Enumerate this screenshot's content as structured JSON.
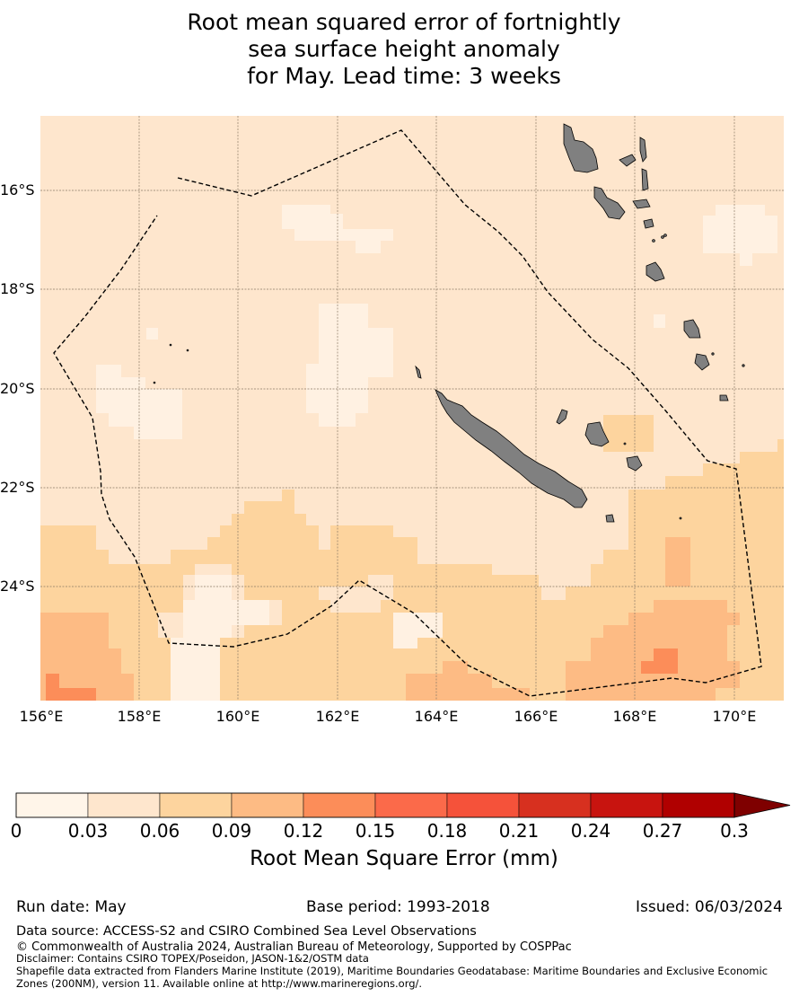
{
  "title": {
    "line1": "Root mean squared error of fortnightly",
    "line2": "sea surface height anomaly",
    "line3": "for May. Lead time: 3 weeks"
  },
  "map": {
    "lon_labels": [
      "156°E",
      "158°E",
      "160°E",
      "162°E",
      "164°E",
      "166°E",
      "168°E",
      "170°E"
    ],
    "lat_labels": [
      "16°S",
      "18°S",
      "20°S",
      "22°S",
      "24°S"
    ],
    "lon_ticks": [
      156,
      158,
      160,
      162,
      164,
      166,
      168,
      170
    ],
    "lat_ticks": [
      -16,
      -18,
      -20,
      -22,
      -24
    ],
    "extent": {
      "lon_min": 156,
      "lon_max": 171,
      "lat_min": -26.5,
      "lat_max": -14.6
    },
    "land_color": "#808080",
    "grid_color": "#8a7a66"
  },
  "colorbar": {
    "ticks": [
      "0",
      "0.03",
      "0.06",
      "0.09",
      "0.12",
      "0.15",
      "0.18",
      "0.21",
      "0.24",
      "0.27",
      "0.3"
    ],
    "colors": [
      "#fff5e9",
      "#fee6cd",
      "#fdd49e",
      "#fdbb84",
      "#fc8d59",
      "#fb6a4a",
      "#f5523a",
      "#d7301f",
      "#c8140f",
      "#b00000"
    ],
    "extend_color": "#7f0000",
    "label": "Root Mean Square Error (mm)"
  },
  "footer": {
    "run_date": "Run date: May",
    "base_period": "Base period: 1993-2018",
    "issued": "Issued: 06/03/2024",
    "data_source": "Data source: ACCESS-S2 and CSIRO Combined Sea Level Observations",
    "copyright": "© Commonwealth of Australia 2024, Australian Bureau of Meteorology, Supported by COSPPac",
    "disclaimer": "Disclaimer: Contains CSIRO TOPEX/Poseidon, JASON-1&2/OSTM data",
    "shapefile1": "Shapefile data extracted from Flanders Marine Institute (2019), Maritime Boundaries Geodatabase: Maritime Boundaries and Exclusive Economic",
    "shapefile2": "Zones (200NM), version 11. Available online at http://www.marineregions.org/."
  }
}
